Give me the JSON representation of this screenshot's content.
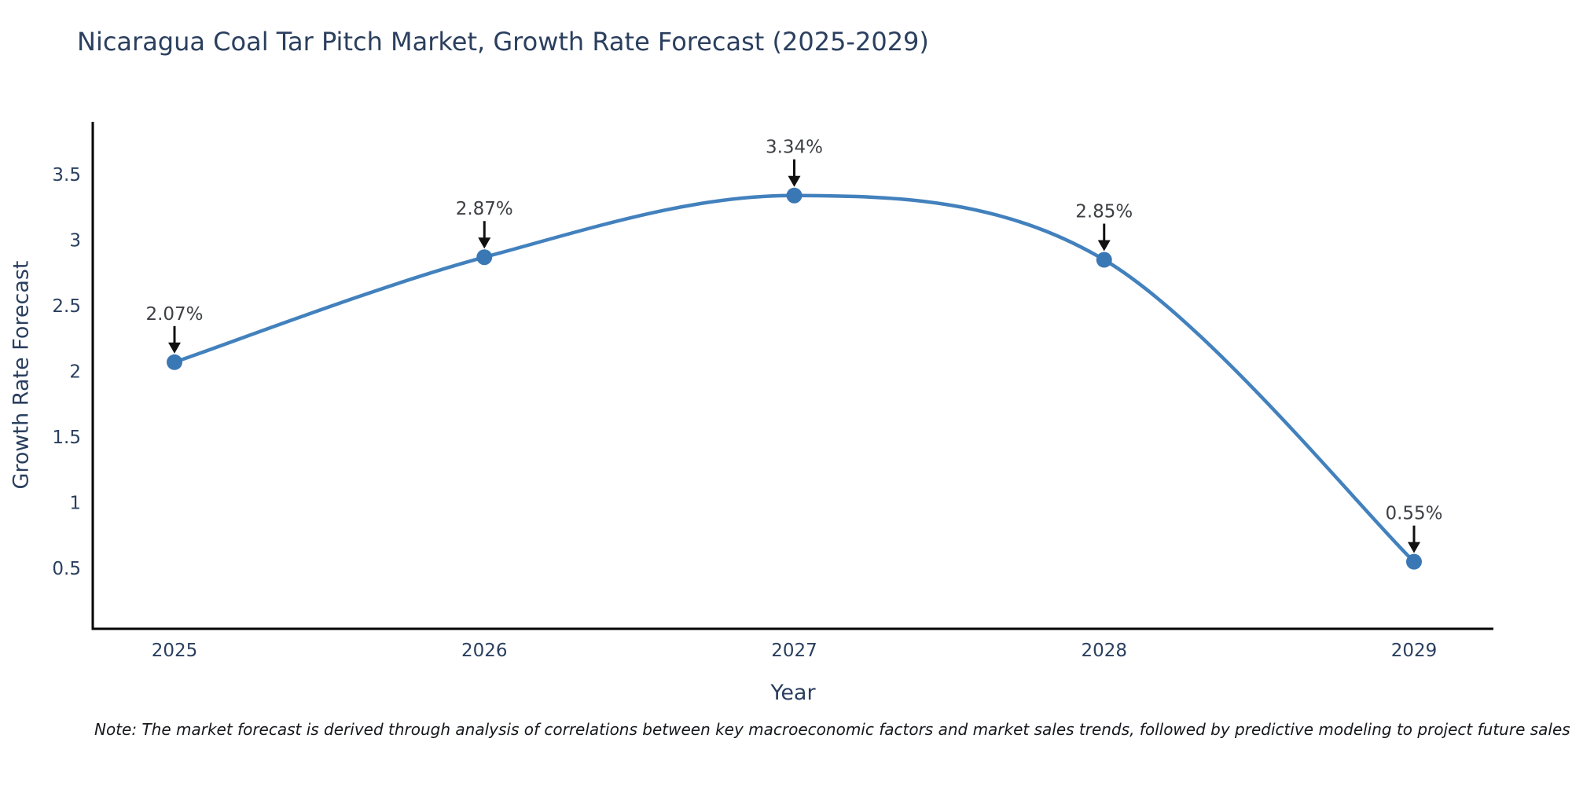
{
  "page": {
    "background": "#ffffff"
  },
  "chart_data": {
    "type": "line",
    "title": "Nicaragua Coal Tar Pitch Market, Growth Rate Forecast (2025-2029)",
    "xlabel": "Year",
    "ylabel": "Growth Rate Forecast",
    "categories": [
      "2025",
      "2026",
      "2027",
      "2028",
      "2029"
    ],
    "series": [
      {
        "name": "Growth Rate Forecast",
        "values": [
          2.07,
          2.87,
          3.34,
          2.85,
          0.55
        ]
      }
    ],
    "point_labels": [
      "2.07%",
      "2.87%",
      "3.34%",
      "2.85%",
      "0.55%"
    ],
    "yticks": [
      0.5,
      1,
      1.5,
      2,
      2.5,
      3,
      3.5
    ],
    "ylim": [
      0.04,
      3.9
    ],
    "line_shape": "spline",
    "grid": false,
    "legend_position": "none",
    "colors": {
      "line": "#4281bd",
      "marker": "#3a78b5",
      "annotation_text": "#3d3f44",
      "arrow": "#111111",
      "axis": "#000000",
      "tick_text": "#2a3f5f",
      "title_text": "#2b3f5e"
    },
    "note": "Note: The market forecast is derived through analysis of correlations between key macroeconomic factors and market sales trends, followed by predictive modeling to project future sales"
  }
}
